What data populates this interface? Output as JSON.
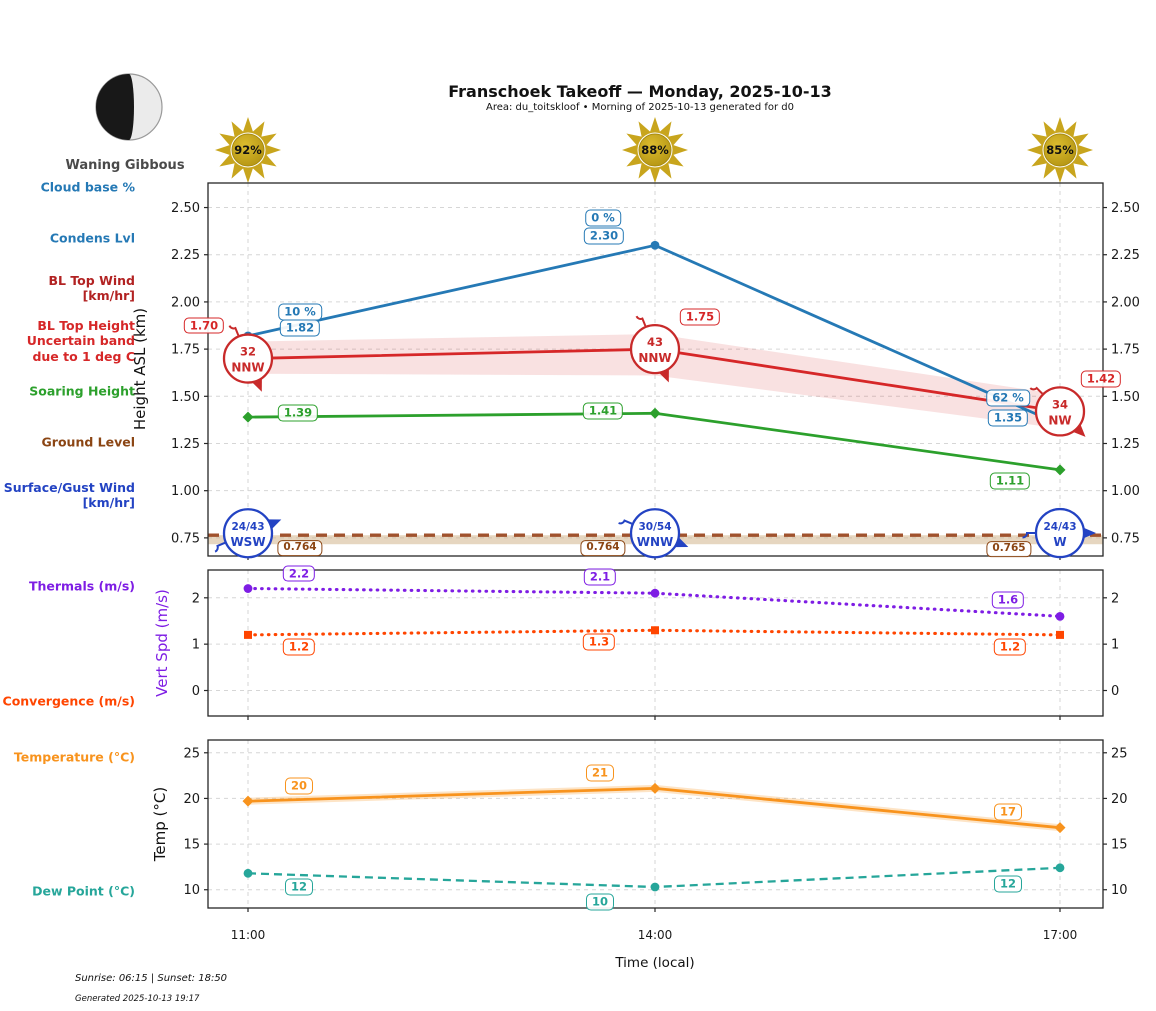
{
  "header": {
    "title": "Franschoek Takeoff — Monday, 2025-10-13",
    "subtitle": "Area: du_toitskloof • Morning of 2025-10-13 generated for d0",
    "moon_phase": "Waning Gibbous"
  },
  "suns": {
    "note": "sunshine percent per time step",
    "values": [
      "92%",
      "88%",
      "85%"
    ]
  },
  "x_axis": {
    "label": "Time (local)",
    "ticks": [
      "11:00",
      "14:00",
      "17:00"
    ]
  },
  "footer": {
    "sun_times": "Sunrise: 06:15 | Sunset: 18:50",
    "generated": "Generated 2025-10-13 19:17"
  },
  "legend_labels": [
    {
      "text": "Cloud base %",
      "color": "#2579b5"
    },
    {
      "text": "Condens Lvl",
      "color": "#2579b5"
    },
    {
      "text": "BL Top Wind\n[km/hr]",
      "color": "#b22222"
    },
    {
      "text": "BL Top Height\nUncertain band\ndue to 1 deg C",
      "color": "#d62728"
    },
    {
      "text": "Soaring Height",
      "color": "#2ca02c"
    },
    {
      "text": "Ground Level",
      "color": "#8B4513"
    },
    {
      "text": "Surface/Gust Wind\n[km/hr]",
      "color": "#2343c3"
    },
    {
      "text": "Thermals (m/s)",
      "color": "#7e1de4"
    },
    {
      "text": "Convergence (m/s)",
      "color": "#ff4500"
    },
    {
      "text": "Temperature (°C)",
      "color": "#f8931d"
    },
    {
      "text": "Dew Point (°C)",
      "color": "#26a69a"
    }
  ],
  "chart_data": [
    {
      "type": "line",
      "ylabel": "Height ASL (km)",
      "x": [
        "11:00",
        "14:00",
        "17:00"
      ],
      "ylim": [
        0.654,
        2.63
      ],
      "yticks": [
        "0.75",
        "1.00",
        "1.25",
        "1.50",
        "1.75",
        "2.00",
        "2.25",
        "2.50"
      ],
      "grid": true,
      "series": [
        {
          "name": "Condens Lvl",
          "kind": "line",
          "color": "#2579b5",
          "marker": "circle",
          "values": [
            1.82,
            2.3,
            1.35
          ],
          "point_labels": [
            "1.82",
            "2.30",
            "1.35"
          ]
        },
        {
          "name": "Cloud base %",
          "kind": "labels-only",
          "color": "#2579b5",
          "attach_to": "Condens Lvl",
          "point_labels": [
            "10 %",
            "0 %",
            "62 %"
          ]
        },
        {
          "name": "BL Top Height",
          "kind": "line+band",
          "color": "#d62728",
          "values": [
            1.7,
            1.75,
            1.42
          ],
          "band_upper": [
            1.79,
            1.83,
            1.51
          ],
          "band_lower": [
            1.62,
            1.61,
            1.33
          ],
          "point_labels": [
            "1.70",
            "1.75",
            "1.42"
          ]
        },
        {
          "name": "Soaring Height",
          "kind": "line",
          "color": "#2ca02c",
          "marker": "diamond",
          "values": [
            1.39,
            1.41,
            1.11
          ],
          "point_labels": [
            "1.39",
            "1.41",
            "1.11"
          ]
        },
        {
          "name": "Ground Level",
          "kind": "dashed-line+fill",
          "color": "#a0522d",
          "label_color": "#8B4513",
          "values": [
            0.764,
            0.764,
            0.765
          ],
          "point_labels": [
            "0.764",
            "0.764",
            "0.765"
          ]
        }
      ],
      "wind_annotations": [
        {
          "name": "BL Top Wind [km/hr]",
          "color": "#c82a2a",
          "at": "BL Top Height",
          "points": [
            {
              "speed": "32",
              "dir": "NNW"
            },
            {
              "speed": "43",
              "dir": "NNW"
            },
            {
              "speed": "34",
              "dir": "NW"
            }
          ]
        },
        {
          "name": "Surface/Gust Wind [km/hr]",
          "color": "#2343c3",
          "at": "Ground Level",
          "points": [
            {
              "speed": "24/43",
              "dir": "WSW"
            },
            {
              "speed": "30/54",
              "dir": "WNW"
            },
            {
              "speed": "24/43",
              "dir": "W"
            }
          ]
        }
      ]
    },
    {
      "type": "line",
      "ylabel": "Vert Spd (m/s)",
      "x": [
        "11:00",
        "14:00",
        "17:00"
      ],
      "ylim": [
        -0.55,
        2.6
      ],
      "yticks": [
        "0",
        "1",
        "2"
      ],
      "grid": true,
      "series": [
        {
          "name": "Thermals (m/s)",
          "kind": "dotted-line",
          "color": "#7e1de4",
          "marker": "circle",
          "values": [
            2.2,
            2.1,
            1.6
          ],
          "point_labels": [
            "2.2",
            "2.1",
            "1.6"
          ]
        },
        {
          "name": "Convergence (m/s)",
          "kind": "dotted-line",
          "color": "#ff4500",
          "marker": "square",
          "values": [
            1.2,
            1.3,
            1.2
          ],
          "point_labels": [
            "1.2",
            "1.3",
            "1.2"
          ]
        }
      ]
    },
    {
      "type": "line",
      "ylabel": "Temp (°C)",
      "x": [
        "11:00",
        "14:00",
        "17:00"
      ],
      "ylim": [
        8.0,
        26.4
      ],
      "yticks": [
        "10",
        "15",
        "20",
        "25"
      ],
      "grid": true,
      "series": [
        {
          "name": "Temperature (°C)",
          "kind": "line",
          "color": "#f8931d",
          "marker": "diamond",
          "values": [
            19.7,
            21.1,
            16.8
          ],
          "point_labels": [
            "20",
            "21",
            "17"
          ]
        },
        {
          "name": "Dew Point (°C)",
          "kind": "dashed-line",
          "color": "#26a69a",
          "marker": "circle",
          "values": [
            11.8,
            10.3,
            12.4
          ],
          "point_labels": [
            "12",
            "10",
            "12"
          ]
        }
      ]
    }
  ]
}
